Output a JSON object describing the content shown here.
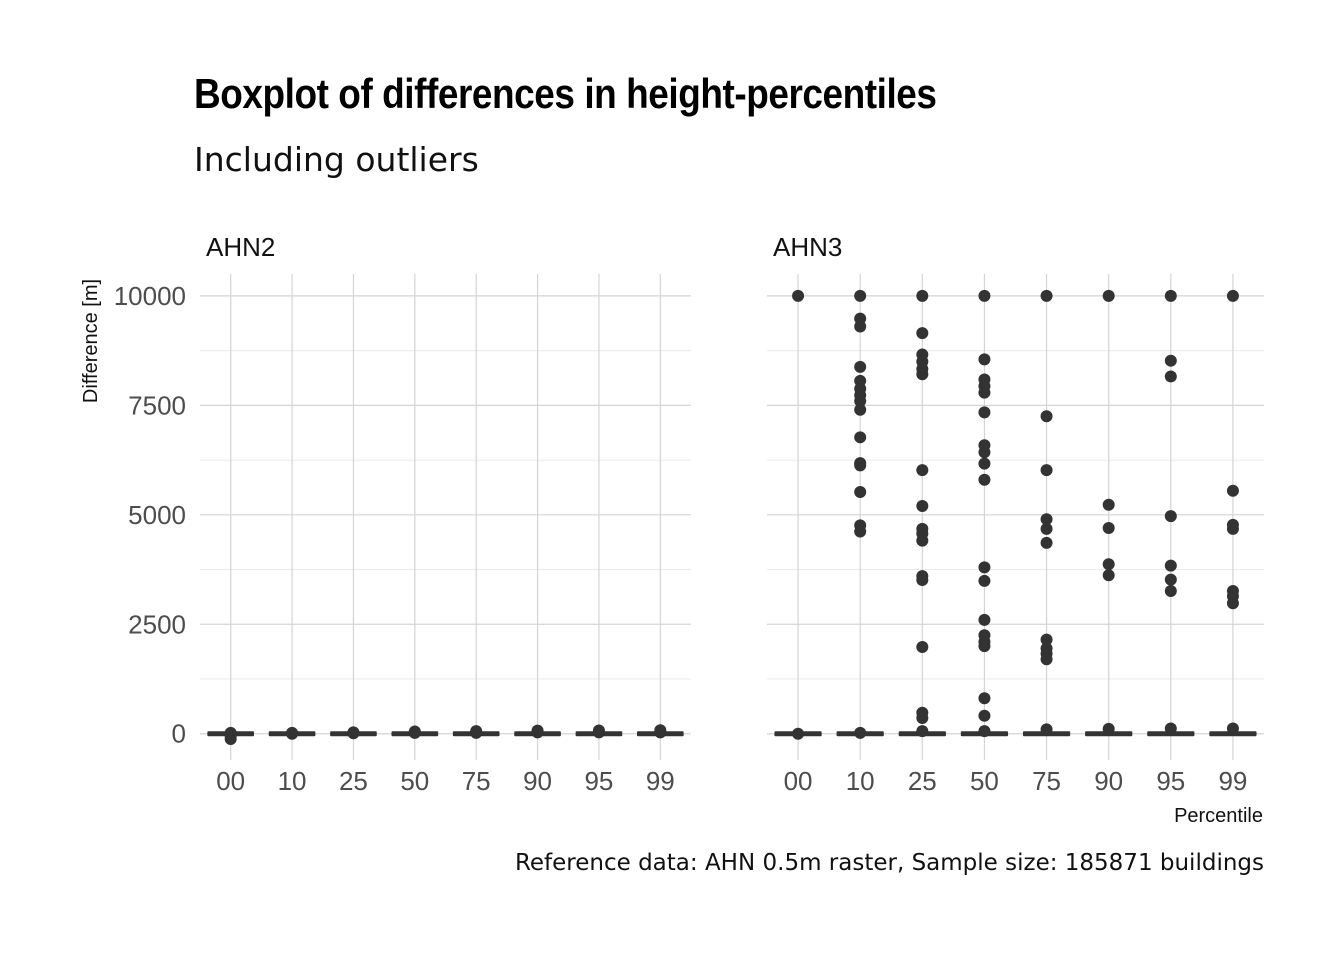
{
  "chart_data": {
    "type": "box",
    "title": "Boxplot of differences in height-percentiles",
    "subtitle": "Including outliers",
    "caption": "Reference data: AHN 0.5m raster, Sample size: 185871 buildings",
    "xlabel": "Percentile",
    "ylabel": "Difference [m]",
    "ylim": [
      -600,
      10500
    ],
    "y_ticks": [
      0,
      2500,
      5000,
      7500,
      10000
    ],
    "categories": [
      "00",
      "10",
      "25",
      "50",
      "75",
      "90",
      "95",
      "99"
    ],
    "grid": true,
    "panels": [
      {
        "name": "AHN2",
        "outliers": {
          "00": [
            -120,
            -60,
            20
          ],
          "10": [
            0,
            20
          ],
          "25": [
            10,
            30
          ],
          "50": [
            20,
            50
          ],
          "75": [
            20,
            60
          ],
          "90": [
            30,
            70
          ],
          "95": [
            30,
            75
          ],
          "99": [
            30,
            80
          ]
        }
      },
      {
        "name": "AHN3",
        "outliers": {
          "00": [
            10000,
            0
          ],
          "10": [
            10000,
            9480,
            9300,
            8380,
            8060,
            7880,
            7730,
            7600,
            7400,
            6770,
            6180,
            6130,
            5520,
            4760,
            4620,
            20
          ],
          "25": [
            10000,
            9150,
            8660,
            8500,
            8330,
            8210,
            6020,
            5200,
            4680,
            4570,
            4410,
            3600,
            3510,
            1980,
            480,
            360,
            60
          ],
          "50": [
            10000,
            8550,
            8090,
            7940,
            7790,
            7340,
            6590,
            6430,
            6170,
            5800,
            3800,
            3490,
            2600,
            2250,
            2100,
            2000,
            810,
            410,
            60
          ],
          "75": [
            10000,
            7250,
            6020,
            4900,
            4680,
            4360,
            2150,
            1950,
            1830,
            1700,
            100
          ],
          "90": [
            10000,
            5230,
            4700,
            3870,
            3620,
            110
          ],
          "95": [
            10000,
            8520,
            8160,
            4970,
            3840,
            3520,
            3260,
            120
          ],
          "99": [
            10000,
            5550,
            4770,
            4680,
            3260,
            3140,
            2980,
            120
          ]
        }
      }
    ]
  }
}
